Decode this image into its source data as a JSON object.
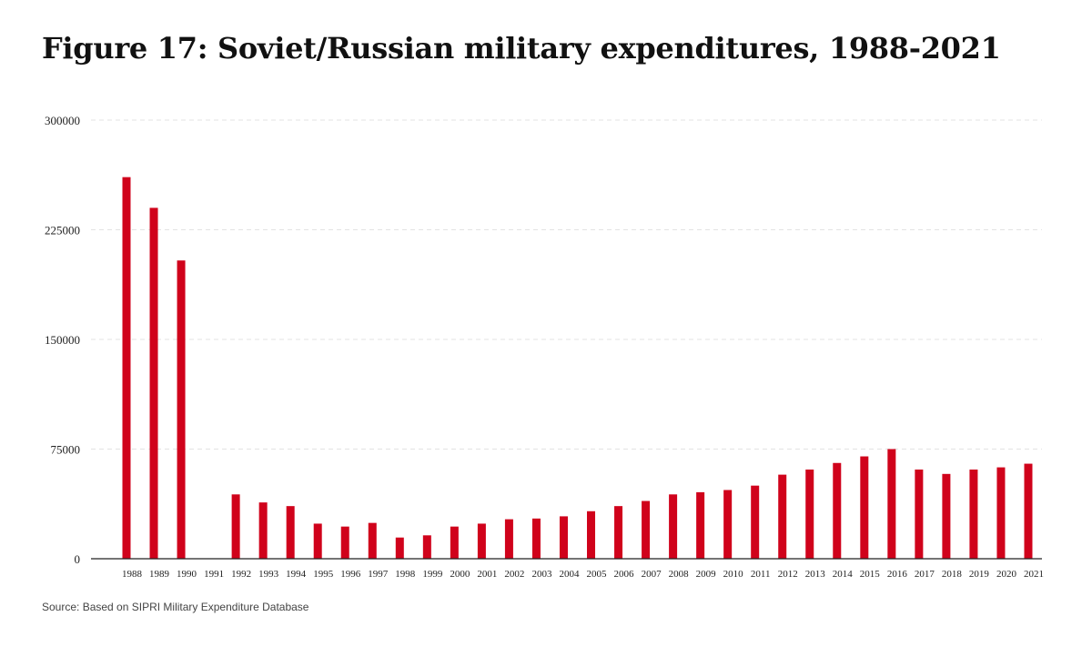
{
  "title": "Figure 17: Soviet/Russian military expenditures, 1988-2021",
  "source": "Source: Based on SIPRI Military Expenditure Database",
  "colors": {
    "bar": "#d0021b",
    "grid": "#e3e3e3",
    "axis": "#222222"
  },
  "chart_data": {
    "type": "bar",
    "title": "Figure 17: Soviet/Russian military expenditures, 1988-2021",
    "xlabel": "",
    "ylabel": "",
    "categories": [
      "1988",
      "1989",
      "1990",
      "1991",
      "1992",
      "1993",
      "1994",
      "1995",
      "1996",
      "1997",
      "1998",
      "1999",
      "2000",
      "2001",
      "2002",
      "2003",
      "2004",
      "2005",
      "2006",
      "2007",
      "2008",
      "2009",
      "2010",
      "2011",
      "2012",
      "2013",
      "2014",
      "2015",
      "2016",
      "2017",
      "2018",
      "2019",
      "2020",
      "2021"
    ],
    "values": [
      261000,
      240000,
      204000,
      null,
      44000,
      38500,
      36000,
      24000,
      22000,
      24500,
      14500,
      16000,
      22000,
      24000,
      27000,
      27500,
      29000,
      32500,
      36000,
      39500,
      44000,
      45500,
      47000,
      50000,
      57500,
      61000,
      65500,
      70000,
      75000,
      61000,
      58000,
      61000,
      62500,
      65000
    ],
    "ylim": [
      0,
      300000
    ],
    "yticks": [
      "0",
      "75000",
      "150000",
      "225000",
      "300000"
    ],
    "grid": true
  }
}
